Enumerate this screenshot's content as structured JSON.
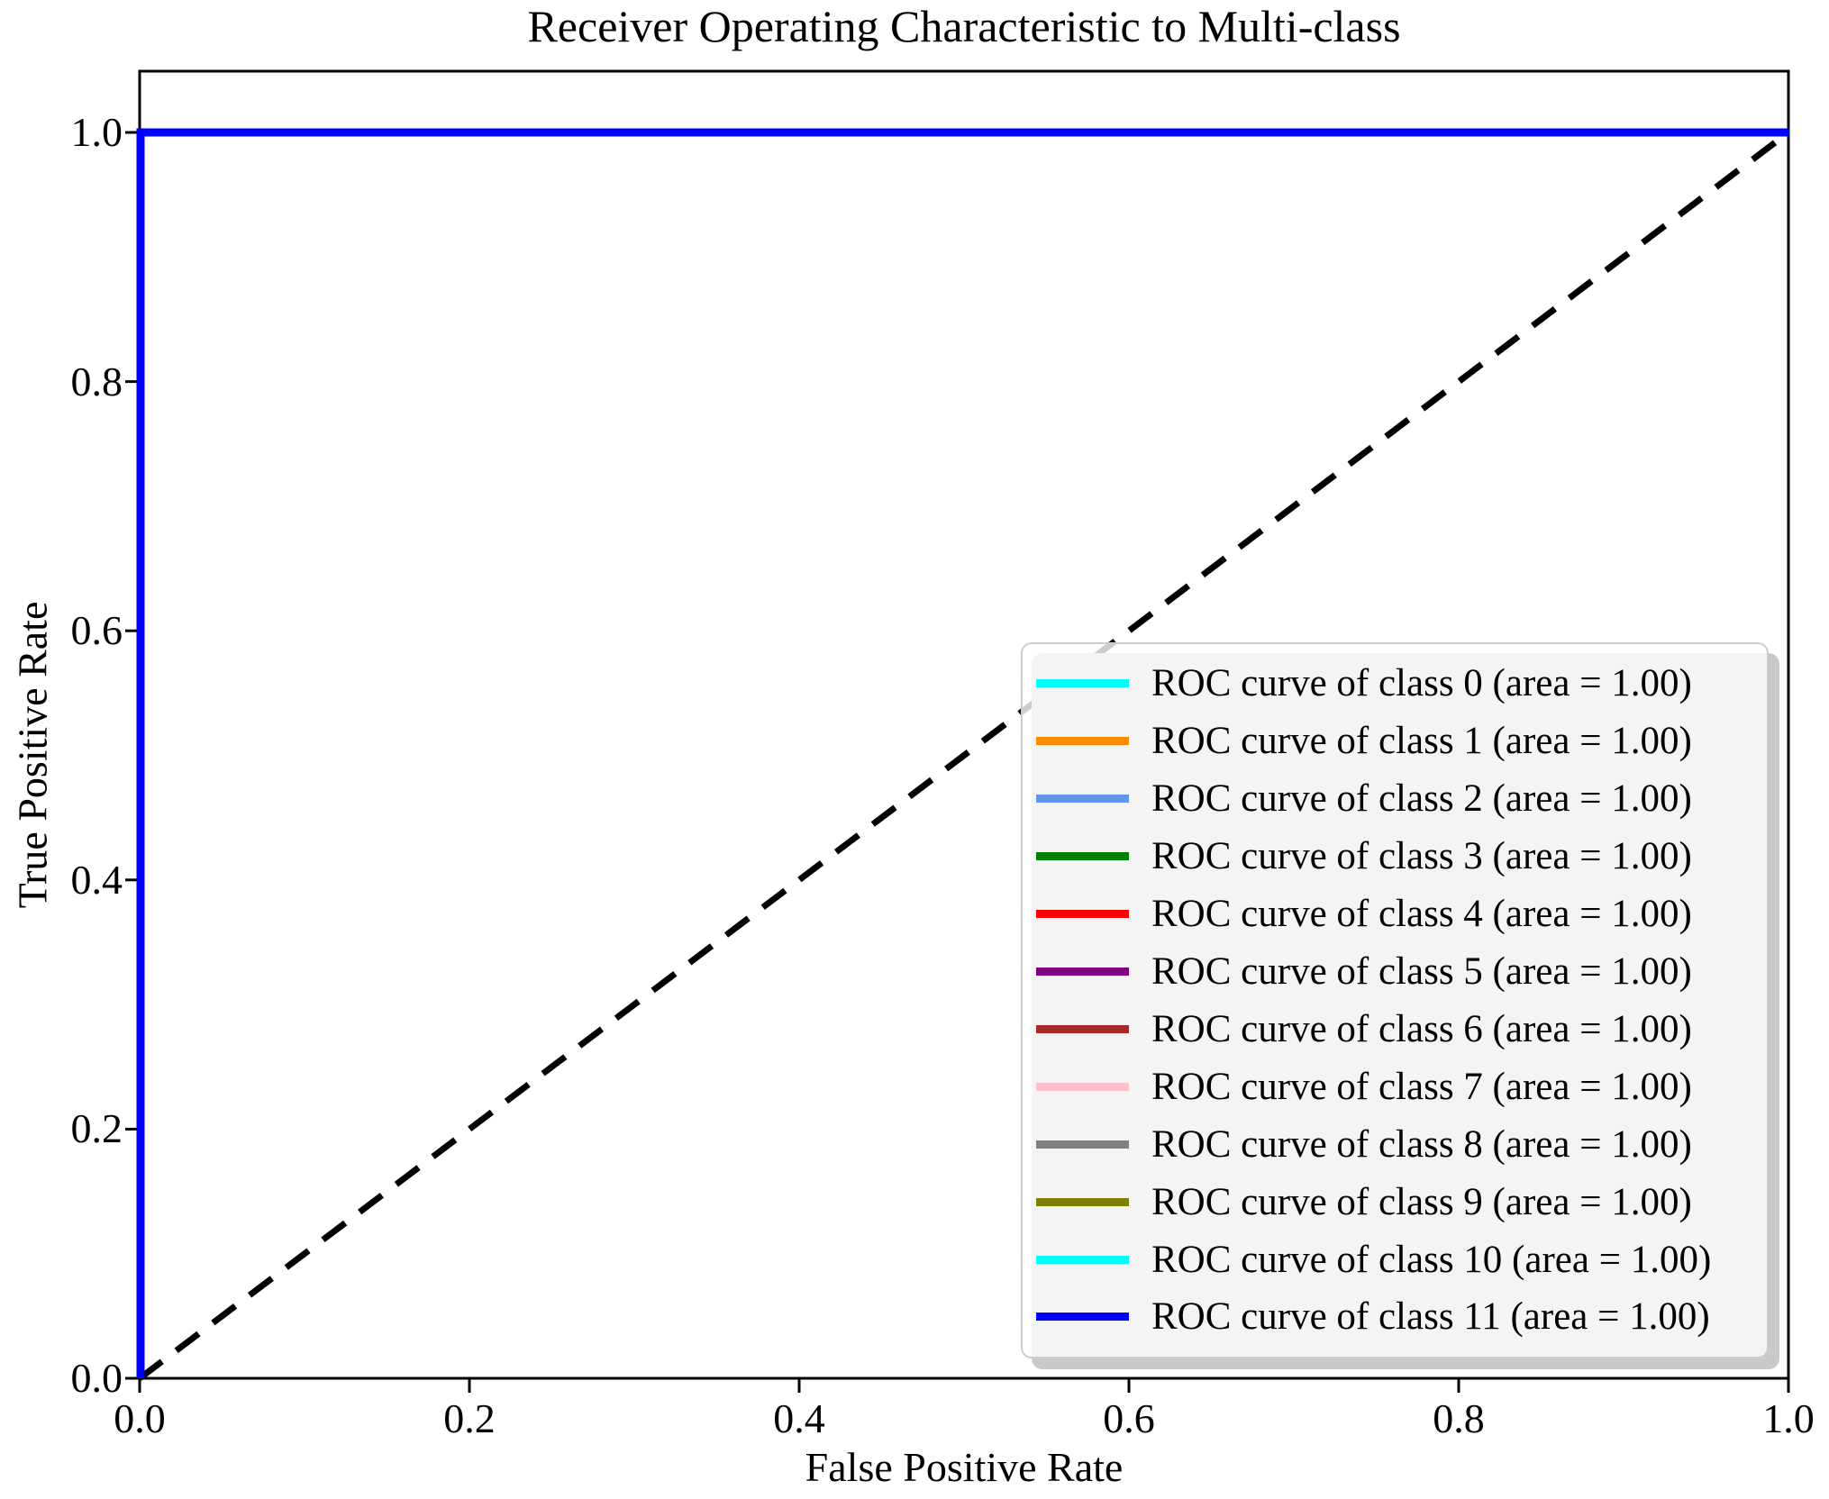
{
  "title": "Receiver Operating Characteristic to Multi-class",
  "axes": {
    "xlabel": "False Positive Rate",
    "ylabel": "True Positive Rate",
    "x_tick_labels": [
      "0.0",
      "0.2",
      "0.4",
      "0.6",
      "0.8",
      "1.0"
    ],
    "y_tick_labels": [
      "0.0",
      "0.2",
      "0.4",
      "0.6",
      "0.8",
      "1.0"
    ]
  },
  "chart_data": {
    "type": "line",
    "title": "Receiver Operating Characteristic to Multi-class",
    "xlabel": "False Positive Rate",
    "ylabel": "True Positive Rate",
    "xlim": [
      0.0,
      1.0
    ],
    "ylim": [
      0.0,
      1.05
    ],
    "grid": false,
    "legend_position": "lower right",
    "x_ticks": [
      0.0,
      0.2,
      0.4,
      0.6,
      0.8,
      1.0
    ],
    "y_ticks": [
      0.0,
      0.2,
      0.4,
      0.6,
      0.8,
      1.0
    ],
    "reference_line": {
      "name": "chance diagonal",
      "style": "dashed",
      "color": "#000000",
      "x": [
        0.0,
        1.0
      ],
      "y": [
        0.0,
        1.0
      ]
    },
    "series": [
      {
        "name": "ROC curve of class 0 (area = 1.00)",
        "class": 0,
        "auc": 1.0,
        "color": "#00FFFF",
        "x": [
          0,
          0,
          1
        ],
        "y": [
          0,
          1,
          1
        ]
      },
      {
        "name": "ROC curve of class 1 (area = 1.00)",
        "class": 1,
        "auc": 1.0,
        "color": "#FF8C00",
        "x": [
          0,
          0,
          1
        ],
        "y": [
          0,
          1,
          1
        ]
      },
      {
        "name": "ROC curve of class 2 (area = 1.00)",
        "class": 2,
        "auc": 1.0,
        "color": "#6495ED",
        "x": [
          0,
          0,
          1
        ],
        "y": [
          0,
          1,
          1
        ]
      },
      {
        "name": "ROC curve of class 3 (area = 1.00)",
        "class": 3,
        "auc": 1.0,
        "color": "#008000",
        "x": [
          0,
          0,
          1
        ],
        "y": [
          0,
          1,
          1
        ]
      },
      {
        "name": "ROC curve of class 4 (area = 1.00)",
        "class": 4,
        "auc": 1.0,
        "color": "#FF0000",
        "x": [
          0,
          0,
          1
        ],
        "y": [
          0,
          1,
          1
        ]
      },
      {
        "name": "ROC curve of class 5 (area = 1.00)",
        "class": 5,
        "auc": 1.0,
        "color": "#800080",
        "x": [
          0,
          0,
          1
        ],
        "y": [
          0,
          1,
          1
        ]
      },
      {
        "name": "ROC curve of class 6 (area = 1.00)",
        "class": 6,
        "auc": 1.0,
        "color": "#A52A2A",
        "x": [
          0,
          0,
          1
        ],
        "y": [
          0,
          1,
          1
        ]
      },
      {
        "name": "ROC curve of class 7 (area = 1.00)",
        "class": 7,
        "auc": 1.0,
        "color": "#FFC0CB",
        "x": [
          0,
          0,
          1
        ],
        "y": [
          0,
          1,
          1
        ]
      },
      {
        "name": "ROC curve of class 8 (area = 1.00)",
        "class": 8,
        "auc": 1.0,
        "color": "#808080",
        "x": [
          0,
          0,
          1
        ],
        "y": [
          0,
          1,
          1
        ]
      },
      {
        "name": "ROC curve of class 9 (area = 1.00)",
        "class": 9,
        "auc": 1.0,
        "color": "#808000",
        "x": [
          0,
          0,
          1
        ],
        "y": [
          0,
          1,
          1
        ]
      },
      {
        "name": "ROC curve of class 10 (area = 1.00)",
        "class": 10,
        "auc": 1.0,
        "color": "#00FFFF",
        "x": [
          0,
          0,
          1
        ],
        "y": [
          0,
          1,
          1
        ]
      },
      {
        "name": "ROC curve of class 11 (area = 1.00)",
        "class": 11,
        "auc": 1.0,
        "color": "#0000FF",
        "x": [
          0,
          0,
          1
        ],
        "y": [
          0,
          1,
          1
        ]
      }
    ]
  }
}
